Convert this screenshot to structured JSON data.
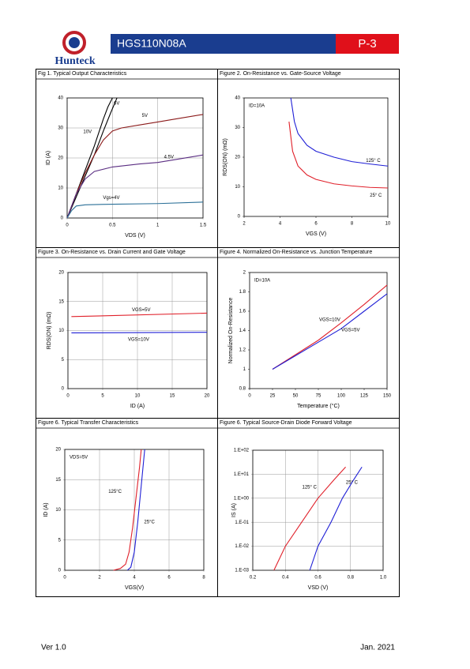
{
  "header": {
    "brand": "Hunteck",
    "title": "HGS110N08A",
    "page": "P-3"
  },
  "footer": {
    "version": "Ver 1.0",
    "date": "Jan. 2021"
  },
  "chart_data": [
    {
      "type": "line",
      "title": "Fig 1. Typical Output Characteristics",
      "x_label": "VDS (V)",
      "y_label": "ID (A)",
      "xlim": [
        0,
        1.5
      ],
      "xticks": [
        0,
        0.5,
        1,
        1.5
      ],
      "ylim": [
        0,
        40
      ],
      "yticks": [
        0,
        10,
        20,
        30,
        40
      ],
      "grid": true,
      "series": [
        {
          "name": "10V",
          "color": "#000000",
          "x": [
            0,
            0.1,
            0.2,
            0.3,
            0.4,
            0.45,
            0.5
          ],
          "values": [
            0,
            8,
            16,
            24,
            33,
            37,
            40
          ]
        },
        {
          "name": "6V",
          "color": "#000000",
          "x": [
            0,
            0.1,
            0.2,
            0.3,
            0.4,
            0.48,
            0.55
          ],
          "values": [
            0,
            7,
            14,
            21,
            29,
            35,
            40
          ]
        },
        {
          "name": "5V",
          "color": "#8b1a1a",
          "x": [
            0,
            0.1,
            0.2,
            0.3,
            0.4,
            0.5,
            0.6,
            0.8,
            1,
            1.2,
            1.5
          ],
          "values": [
            0,
            8,
            15,
            21,
            26,
            29,
            30,
            31,
            32,
            33,
            34.5
          ]
        },
        {
          "name": "4.5V",
          "color": "#5a2d82",
          "x": [
            0,
            0.1,
            0.2,
            0.3,
            0.5,
            0.8,
            1,
            1.2,
            1.5
          ],
          "values": [
            0,
            8,
            13,
            15.5,
            17,
            18,
            18.5,
            19.5,
            21
          ]
        },
        {
          "name": "Vgs=4V",
          "color": "#2a6f97",
          "x": [
            0,
            0.05,
            0.1,
            0.2,
            0.5,
            1,
            1.5
          ],
          "values": [
            0,
            2.5,
            4,
            4.4,
            4.6,
            4.8,
            5.3
          ]
        }
      ]
    },
    {
      "type": "line",
      "title": "Figure 2. On-Resistance vs. Gate-Source Voltage",
      "x_label": "VGS (V)",
      "y_label": "RDS(ON) (mΩ)",
      "annotation": "ID=10A",
      "xlim": [
        2,
        10
      ],
      "xticks": [
        2,
        4,
        6,
        8,
        10
      ],
      "ylim": [
        0,
        40
      ],
      "yticks": [
        0,
        10,
        20,
        30,
        40
      ],
      "grid": false,
      "series": [
        {
          "name": "125° C",
          "color": "#1f1fd6",
          "x": [
            4.6,
            4.8,
            5,
            5.5,
            6,
            7,
            8,
            9,
            10
          ],
          "values": [
            40,
            32,
            28,
            24,
            22,
            20,
            18.5,
            17.7,
            17
          ]
        },
        {
          "name": "25° C",
          "color": "#e0202a",
          "x": [
            4.5,
            4.7,
            5,
            5.5,
            6,
            7,
            8,
            9,
            10
          ],
          "values": [
            32,
            22,
            17,
            14,
            12.5,
            11,
            10.3,
            9.8,
            9.6
          ]
        }
      ]
    },
    {
      "type": "line",
      "title": "Figure 3. On-Resistance vs. Drain Current and Gate Voltage",
      "x_label": "ID (A)",
      "y_label": "RDS(ON) (mΩ)",
      "xlim": [
        0,
        20
      ],
      "xticks": [
        0,
        5,
        10,
        15,
        20
      ],
      "ylim": [
        0,
        20
      ],
      "yticks": [
        0,
        5,
        10,
        15,
        20
      ],
      "grid": true,
      "series": [
        {
          "name": "VGS=5V",
          "color": "#e0202a",
          "x": [
            0.5,
            20
          ],
          "values": [
            12.4,
            13
          ]
        },
        {
          "name": "VGS=10V",
          "color": "#1f1fd6",
          "x": [
            0.5,
            20
          ],
          "values": [
            9.6,
            9.7
          ]
        }
      ]
    },
    {
      "type": "line",
      "title": "Figure 4. Normalized On-Resistance vs. Junction Temperature",
      "x_label": "Temperature (°C)",
      "y_label": "Normalized On-Resistance",
      "annotation": "ID=10A",
      "xlim": [
        0,
        150
      ],
      "xticks": [
        0,
        25,
        50,
        75,
        100,
        125,
        150
      ],
      "ylim": [
        0.8,
        2
      ],
      "yticks": [
        0.8,
        1,
        1.2,
        1.4,
        1.6,
        1.8,
        2
      ],
      "grid": false,
      "series": [
        {
          "name": "VGS=10V",
          "color": "#e0202a",
          "x": [
            25,
            50,
            75,
            100,
            125,
            150
          ],
          "values": [
            1,
            1.15,
            1.3,
            1.48,
            1.67,
            1.87
          ]
        },
        {
          "name": "VGS=5V",
          "color": "#1f1fd6",
          "x": [
            25,
            50,
            75,
            100,
            125,
            150
          ],
          "values": [
            1,
            1.14,
            1.28,
            1.42,
            1.6,
            1.78
          ]
        }
      ]
    },
    {
      "type": "line",
      "title": "Figure 6. Typical Transfer Characteristics",
      "x_label": "VGS(V)",
      "y_label": "ID (A)",
      "annotation": "VDS=5V",
      "xlim": [
        0,
        8
      ],
      "xticks": [
        0,
        2,
        4,
        6,
        8
      ],
      "ylim": [
        0,
        20
      ],
      "yticks": [
        0,
        5,
        10,
        15,
        20
      ],
      "grid": true,
      "series": [
        {
          "name": "125°C",
          "color": "#e0202a",
          "x": [
            2.8,
            3.2,
            3.5,
            3.7,
            3.9,
            4.1,
            4.3,
            4.4
          ],
          "values": [
            0,
            0.3,
            1,
            3,
            7,
            12,
            17,
            20
          ]
        },
        {
          "name": "25°C",
          "color": "#1f1fd6",
          "x": [
            3.6,
            3.8,
            4,
            4.2,
            4.4,
            4.6
          ],
          "values": [
            0,
            0.5,
            3,
            8,
            14,
            20
          ]
        }
      ]
    },
    {
      "type": "line",
      "title": "Figure 6. Typical Source-Drain Diode Forward Voltage",
      "x_label": "VSD (V)",
      "y_label": "IS (A)",
      "log_y": true,
      "xlim": [
        0.2,
        1
      ],
      "xticks": [
        0.2,
        0.4,
        0.6,
        0.8,
        {
          "value": 1,
          "label": "1.0"
        }
      ],
      "ylim": [
        0.001,
        100
      ],
      "yticks": [
        {
          "value": 0.001,
          "label": "1.E-03"
        },
        {
          "value": 0.01,
          "label": "1.E-02"
        },
        {
          "value": 0.1,
          "label": "1.E-01"
        },
        {
          "value": 1,
          "label": "1.E+00"
        },
        {
          "value": 10,
          "label": "1.E+01"
        },
        {
          "value": 100,
          "label": "1.E+02"
        }
      ],
      "grid": true,
      "series": [
        {
          "name": "125° C",
          "color": "#e0202a",
          "x": [
            0.33,
            0.4,
            0.5,
            0.6,
            0.7,
            0.77
          ],
          "values": [
            0.001,
            0.01,
            0.1,
            1,
            6,
            20
          ]
        },
        {
          "name": "25° C",
          "color": "#1f1fd6",
          "x": [
            0.55,
            0.6,
            0.68,
            0.75,
            0.82,
            0.87
          ],
          "values": [
            0.001,
            0.01,
            0.1,
            1,
            6,
            20
          ]
        }
      ]
    }
  ]
}
